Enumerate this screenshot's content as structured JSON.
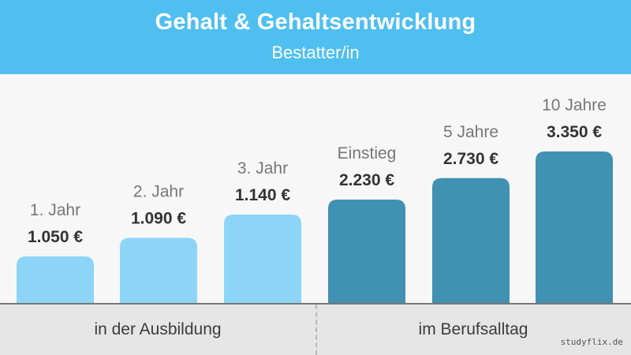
{
  "header": {
    "title": "Gehalt & Gehaltsentwicklung",
    "subtitle": "Bestatter/in"
  },
  "chart_data": {
    "type": "bar",
    "title": "Gehalt & Gehaltsentwicklung",
    "subtitle": "Bestatter/in",
    "categories": [
      "1. Jahr",
      "2. Jahr",
      "3. Jahr",
      "Einstieg",
      "5 Jahre",
      "10 Jahre"
    ],
    "values": [
      1050,
      1090,
      1140,
      2230,
      2730,
      3350
    ],
    "value_labels": [
      "1.050 €",
      "1.090 €",
      "1.140 €",
      "2.230 €",
      "2.730 €",
      "3.350 €"
    ],
    "groups": [
      {
        "label": "in der Ausbildung",
        "color": "#8dd5f7",
        "indices": [
          0,
          1,
          2
        ]
      },
      {
        "label": "im Berufsalltag",
        "color": "#4191b2",
        "indices": [
          3,
          4,
          5
        ]
      }
    ],
    "grid": false,
    "legend": "none"
  },
  "footer": {
    "group_left": "in der Ausbildung",
    "group_right": "im Berufsalltag"
  },
  "watermark": "studyflix.de",
  "colors": {
    "header_bg": "#4fbff0",
    "bar_training": "#8dd5f7",
    "bar_career": "#4191b2",
    "category_text": "#777777",
    "value_text": "#333333",
    "baseline": "#777777"
  }
}
